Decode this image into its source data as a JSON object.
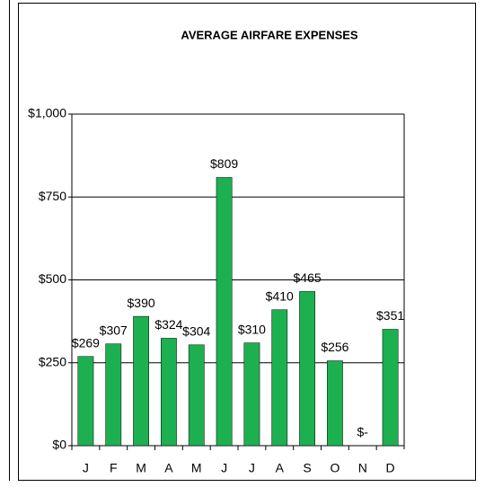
{
  "chart_data": {
    "type": "bar",
    "title": "AVERAGE AIRFARE EXPENSES",
    "categories": [
      "J",
      "F",
      "M",
      "A",
      "M",
      "J",
      "J",
      "A",
      "S",
      "O",
      "N",
      "D"
    ],
    "values": [
      269,
      307,
      390,
      324,
      304,
      809,
      310,
      410,
      465,
      256,
      0,
      351
    ],
    "value_labels": [
      "$269",
      "$307",
      "$390",
      "$324",
      "$304",
      "$809",
      "$310",
      "$410",
      "$465",
      "$256",
      "$-",
      "$351"
    ],
    "colors": [
      "#1db050",
      "#1db050",
      "#1db050",
      "#1db050",
      "#1db050",
      "#1db050",
      "#1db050",
      "#1db050",
      "#1db050",
      "#1db050",
      "#d9534f",
      "#1db050"
    ],
    "ylim": [
      0,
      1000
    ],
    "yticks": [
      {
        "value": 0,
        "label": "$0"
      },
      {
        "value": 250,
        "label": "$250"
      },
      {
        "value": 500,
        "label": "$500"
      },
      {
        "value": 750,
        "label": "$750"
      },
      {
        "value": 1000,
        "label": "$1,000"
      }
    ],
    "grid": true
  }
}
